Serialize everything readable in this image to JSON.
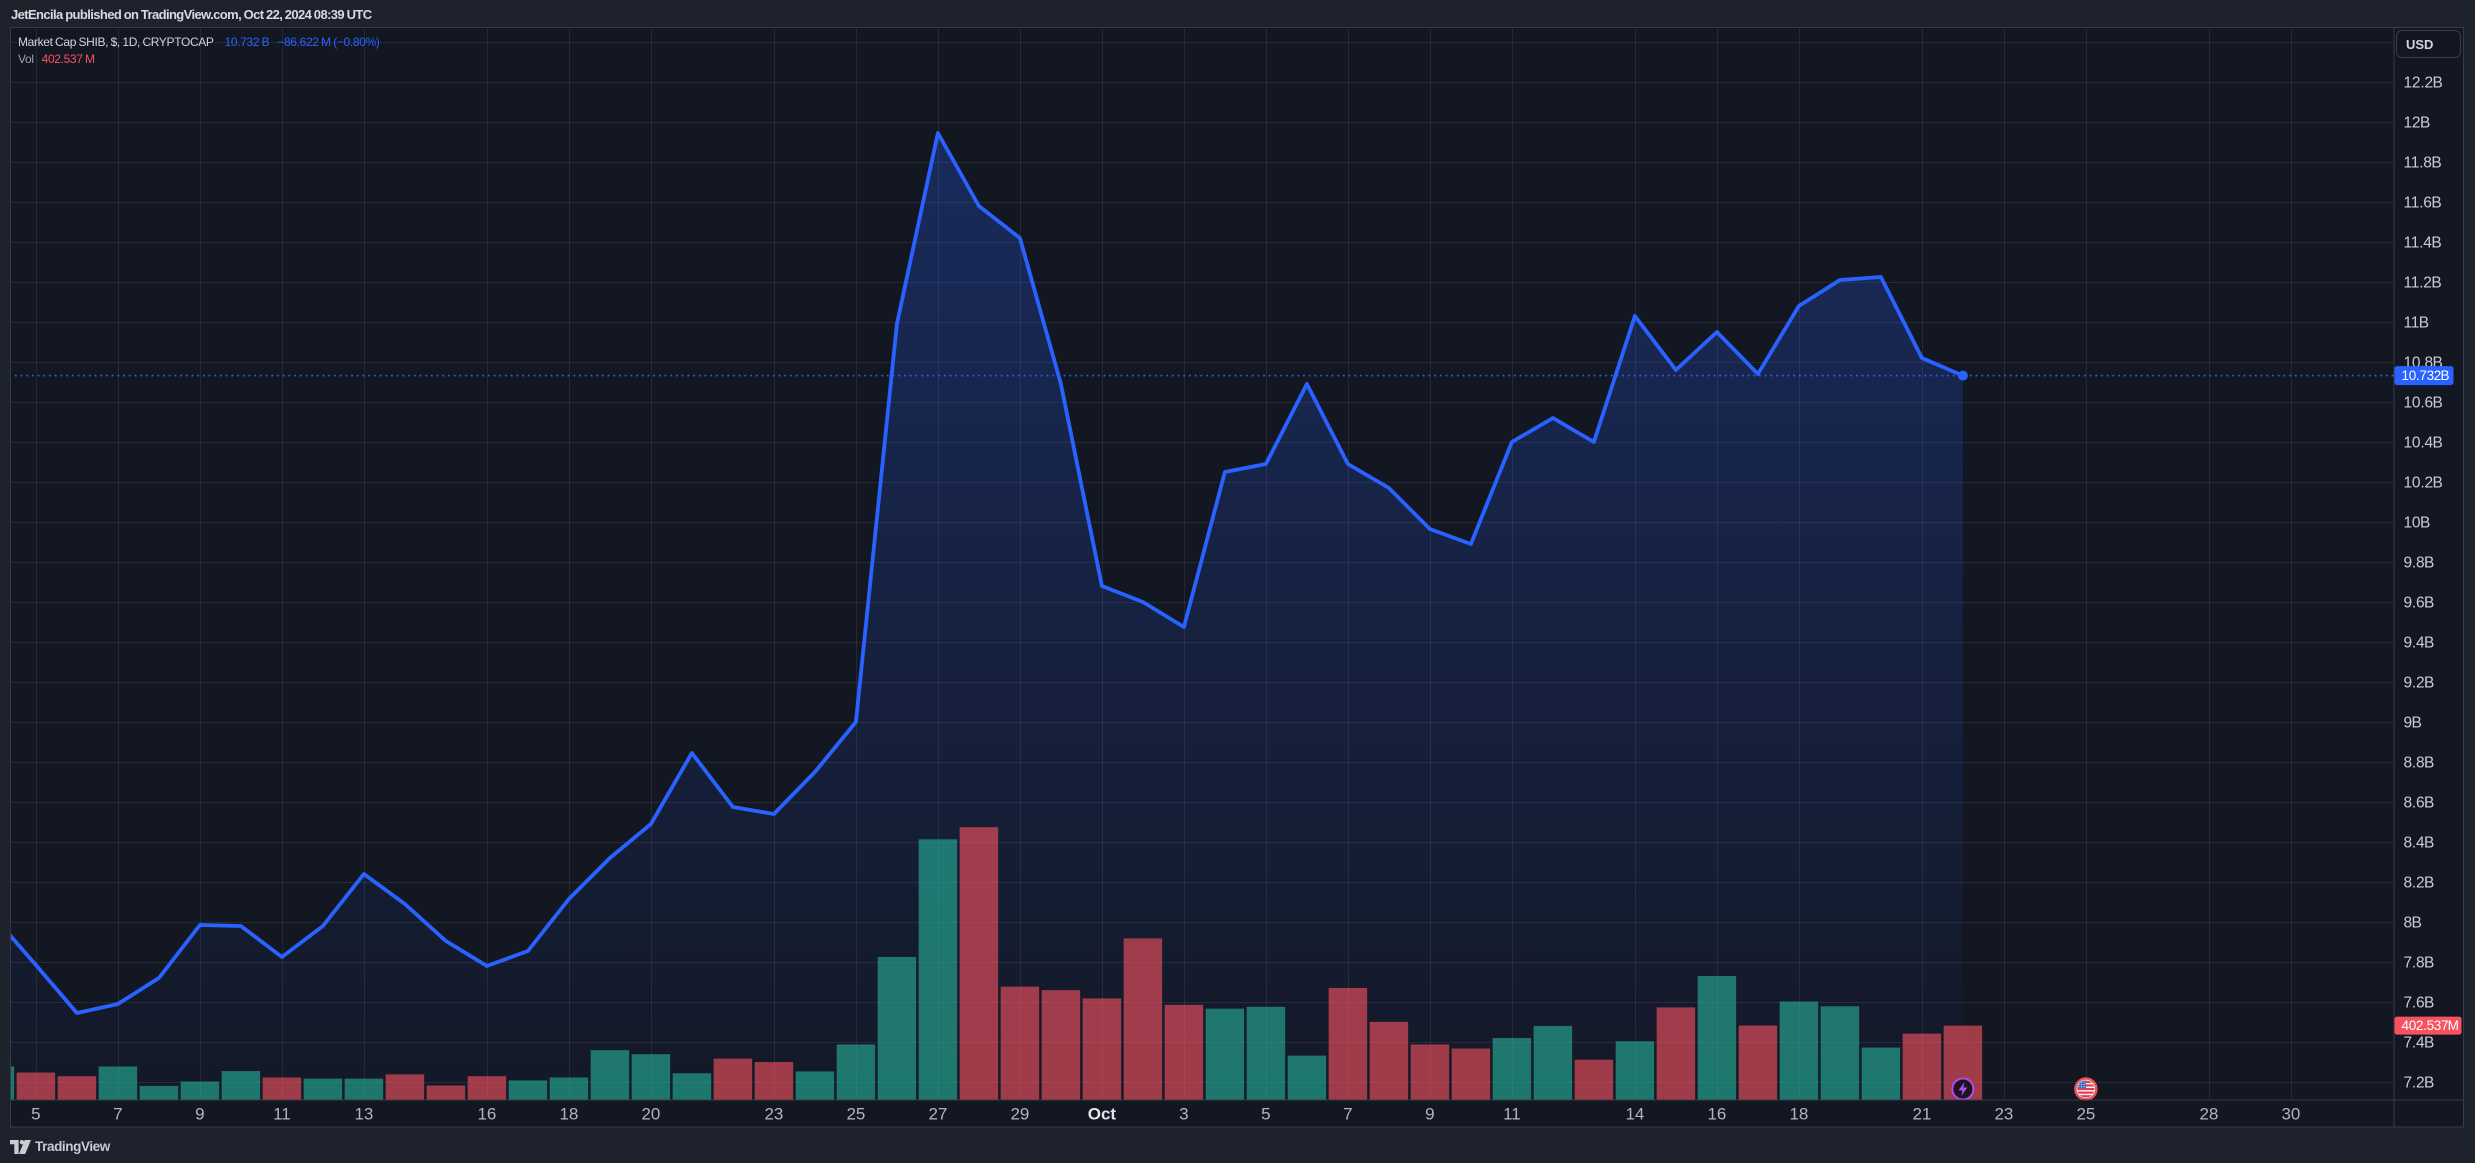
{
  "page": {
    "background": "#1e222d",
    "chart_background": "#131722"
  },
  "header": {
    "note": "JetEncila published on TradingView.com, Oct 22, 2024 08:39 UTC"
  },
  "legend": {
    "title": "Market Cap SHIB, $, 1D, CRYPTOCAP",
    "price_value": "10.732 B",
    "change_value": "−86.622 M (−0.80%)",
    "vol_label": "Vol",
    "vol_value": "402.537 M"
  },
  "price_axis": {
    "currency_label": "USD",
    "last_price_label": "10.732 B",
    "last_volume_label": "402.537 M",
    "tick_labels": [
      "12.2 B",
      "12 B",
      "11.8 B",
      "11.6 B",
      "11.4 B",
      "11.2 B",
      "11 B",
      "10.8 B",
      "10.6 B",
      "10.4 B",
      "10.2 B",
      "10 B",
      "9.8 B",
      "9.6 B",
      "9.4 B",
      "9.2 B",
      "9 B",
      "8.8 B",
      "8.6 B",
      "8.4 B",
      "8.2 B",
      "8 B",
      "7.8 B",
      "7.6 B",
      "7.4 B",
      "7.2 B"
    ],
    "tick_values": [
      12.2,
      12.0,
      11.8,
      11.6,
      11.4,
      11.2,
      11.0,
      10.8,
      10.6,
      10.4,
      10.2,
      10.0,
      9.8,
      9.6,
      9.4,
      9.2,
      9.0,
      8.8,
      8.6,
      8.4,
      8.2,
      8.0,
      7.8,
      7.6,
      7.4,
      7.2
    ]
  },
  "time_axis": {
    "ticks": [
      {
        "label": "5",
        "index": 1,
        "major": false
      },
      {
        "label": "7",
        "index": 3,
        "major": false
      },
      {
        "label": "9",
        "index": 5,
        "major": false
      },
      {
        "label": "11",
        "index": 7,
        "major": false
      },
      {
        "label": "13",
        "index": 9,
        "major": false
      },
      {
        "label": "16",
        "index": 12,
        "major": false
      },
      {
        "label": "18",
        "index": 14,
        "major": false
      },
      {
        "label": "20",
        "index": 16,
        "major": false
      },
      {
        "label": "23",
        "index": 19,
        "major": false
      },
      {
        "label": "25",
        "index": 21,
        "major": false
      },
      {
        "label": "27",
        "index": 23,
        "major": false
      },
      {
        "label": "29",
        "index": 25,
        "major": false
      },
      {
        "label": "Oct",
        "index": 27,
        "major": true
      },
      {
        "label": "3",
        "index": 29,
        "major": false
      },
      {
        "label": "5",
        "index": 31,
        "major": false
      },
      {
        "label": "7",
        "index": 33,
        "major": false
      },
      {
        "label": "9",
        "index": 35,
        "major": false
      },
      {
        "label": "11",
        "index": 37,
        "major": false
      },
      {
        "label": "14",
        "index": 40,
        "major": false
      },
      {
        "label": "16",
        "index": 42,
        "major": false
      },
      {
        "label": "18",
        "index": 44,
        "major": false
      },
      {
        "label": "21",
        "index": 47,
        "major": false
      },
      {
        "label": "23",
        "index": 49,
        "major": false
      },
      {
        "label": "25",
        "index": 51,
        "major": false
      },
      {
        "label": "28",
        "index": 54,
        "major": false
      },
      {
        "label": "30",
        "index": 56,
        "major": false
      }
    ]
  },
  "footer": {
    "brand": "TradingView"
  },
  "events": [
    {
      "icon": "lightning-icon",
      "index": 48,
      "color": "#a94cf2"
    },
    {
      "icon": "us-flag-icon",
      "index": 51,
      "color": "#ef5350"
    }
  ],
  "chart_data": {
    "type": "area",
    "title": "Market Cap SHIB, $, 1D, CRYPTOCAP",
    "symbol": "CRYPTOCAP:SHIB",
    "interval": "1D",
    "yunit": "USD billions",
    "ylim": [
      7.1125,
      12.475
    ],
    "grid": true,
    "last_price": 10.732,
    "last_change": "-86.622 M (-0.80%)",
    "last_volume_millions": 402.537,
    "volume_ylim_millions": [
      0,
      5845
    ],
    "dates": [
      "2024-09-04",
      "2024-09-05",
      "2024-09-06",
      "2024-09-07",
      "2024-09-08",
      "2024-09-09",
      "2024-09-10",
      "2024-09-11",
      "2024-09-12",
      "2024-09-13",
      "2024-09-14",
      "2024-09-15",
      "2024-09-16",
      "2024-09-17",
      "2024-09-18",
      "2024-09-19",
      "2024-09-20",
      "2024-09-21",
      "2024-09-22",
      "2024-09-23",
      "2024-09-24",
      "2024-09-25",
      "2024-09-26",
      "2024-09-27",
      "2024-09-28",
      "2024-09-29",
      "2024-09-30",
      "2024-10-01",
      "2024-10-02",
      "2024-10-03",
      "2024-10-04",
      "2024-10-05",
      "2024-10-06",
      "2024-10-07",
      "2024-10-08",
      "2024-10-09",
      "2024-10-10",
      "2024-10-11",
      "2024-10-12",
      "2024-10-13",
      "2024-10-14",
      "2024-10-15",
      "2024-10-16",
      "2024-10-17",
      "2024-10-18",
      "2024-10-19",
      "2024-10-20",
      "2024-10-21",
      "2024-10-22"
    ],
    "series": [
      {
        "name": "Market Cap (B USD)",
        "color": "#2962ff",
        "values": [
          8.02,
          7.785,
          7.545,
          7.59,
          7.72,
          7.985,
          7.98,
          7.825,
          7.98,
          8.24,
          8.09,
          7.905,
          7.78,
          7.855,
          8.115,
          8.32,
          8.49,
          8.845,
          8.575,
          8.54,
          8.75,
          9.0,
          10.99,
          11.945,
          11.58,
          11.42,
          10.69,
          9.68,
          9.6,
          9.475,
          10.25,
          10.29,
          10.69,
          10.29,
          10.17,
          9.965,
          9.89,
          10.4,
          10.52,
          10.4,
          11.03,
          10.76,
          10.95,
          10.74,
          11.08,
          11.21,
          11.225,
          10.82,
          10.732
        ]
      }
    ],
    "volume": {
      "name": "Vol",
      "up_color": "#26a69a",
      "down_color": "#f7525f",
      "values_millions": [
        180,
        147,
        127,
        180,
        74,
        98,
        155,
        120,
        114,
        114,
        137,
        76,
        127,
        104,
        120,
        269,
        247,
        143,
        223,
        204,
        153,
        300,
        777,
        1418,
        1484,
        615,
        596,
        551,
        878,
        516,
        495,
        505,
        239,
        608,
        423,
        300,
        278,
        335,
        401,
        217,
        317,
        502,
        673,
        403,
        534,
        508,
        283,
        359,
        402.537
      ],
      "directions": [
        "up",
        "down",
        "down",
        "up",
        "up",
        "up",
        "up",
        "down",
        "up",
        "up",
        "down",
        "down",
        "down",
        "up",
        "up",
        "up",
        "up",
        "up",
        "down",
        "down",
        "up",
        "up",
        "up",
        "up",
        "down",
        "down",
        "down",
        "down",
        "down",
        "down",
        "up",
        "up",
        "up",
        "down",
        "down",
        "down",
        "down",
        "up",
        "up",
        "down",
        "up",
        "down",
        "up",
        "down",
        "up",
        "up",
        "up",
        "down",
        "down"
      ]
    }
  },
  "theme": {
    "line_blue": "#2962ff",
    "label_red": "#f7525f",
    "vol_up": "rgba(38,172,148,0.64)",
    "vol_down": "rgba(247,82,95,0.62)",
    "grid_color": "rgba(200,208,228,0.10)",
    "border_color": "#363b47",
    "axis_text": "#c9ccd4",
    "time_text": "#b2b5be",
    "time_text_major": "#e3e5ea"
  }
}
